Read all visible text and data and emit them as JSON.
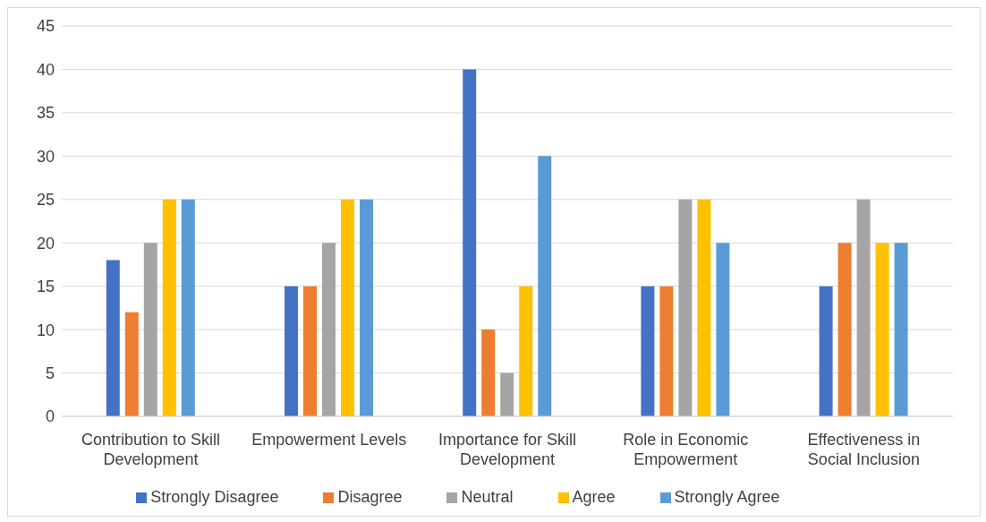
{
  "chart_data": {
    "type": "bar",
    "categories": [
      "Contribution to Skill Development",
      "Empowerment Levels",
      "Importance for Skill Development",
      "Role in Economic Empowerment",
      "Effectiveness in Social Inclusion"
    ],
    "series": [
      {
        "name": "Strongly Disagree",
        "color": "#4472c4",
        "values": [
          18,
          15,
          40,
          15,
          15
        ]
      },
      {
        "name": "Disagree",
        "color": "#ed7d31",
        "values": [
          12,
          15,
          10,
          15,
          20
        ]
      },
      {
        "name": "Neutral",
        "color": "#a5a5a5",
        "values": [
          20,
          20,
          5,
          25,
          25
        ]
      },
      {
        "name": "Agree",
        "color": "#ffc000",
        "values": [
          25,
          25,
          15,
          25,
          20
        ]
      },
      {
        "name": "Strongly Agree",
        "color": "#5b9bd5",
        "values": [
          25,
          25,
          30,
          20,
          20
        ]
      }
    ],
    "ylim": [
      0,
      45
    ],
    "yticks": [
      0,
      5,
      10,
      15,
      20,
      25,
      30,
      35,
      40,
      45
    ],
    "grid": "y",
    "legend": "bottom"
  }
}
